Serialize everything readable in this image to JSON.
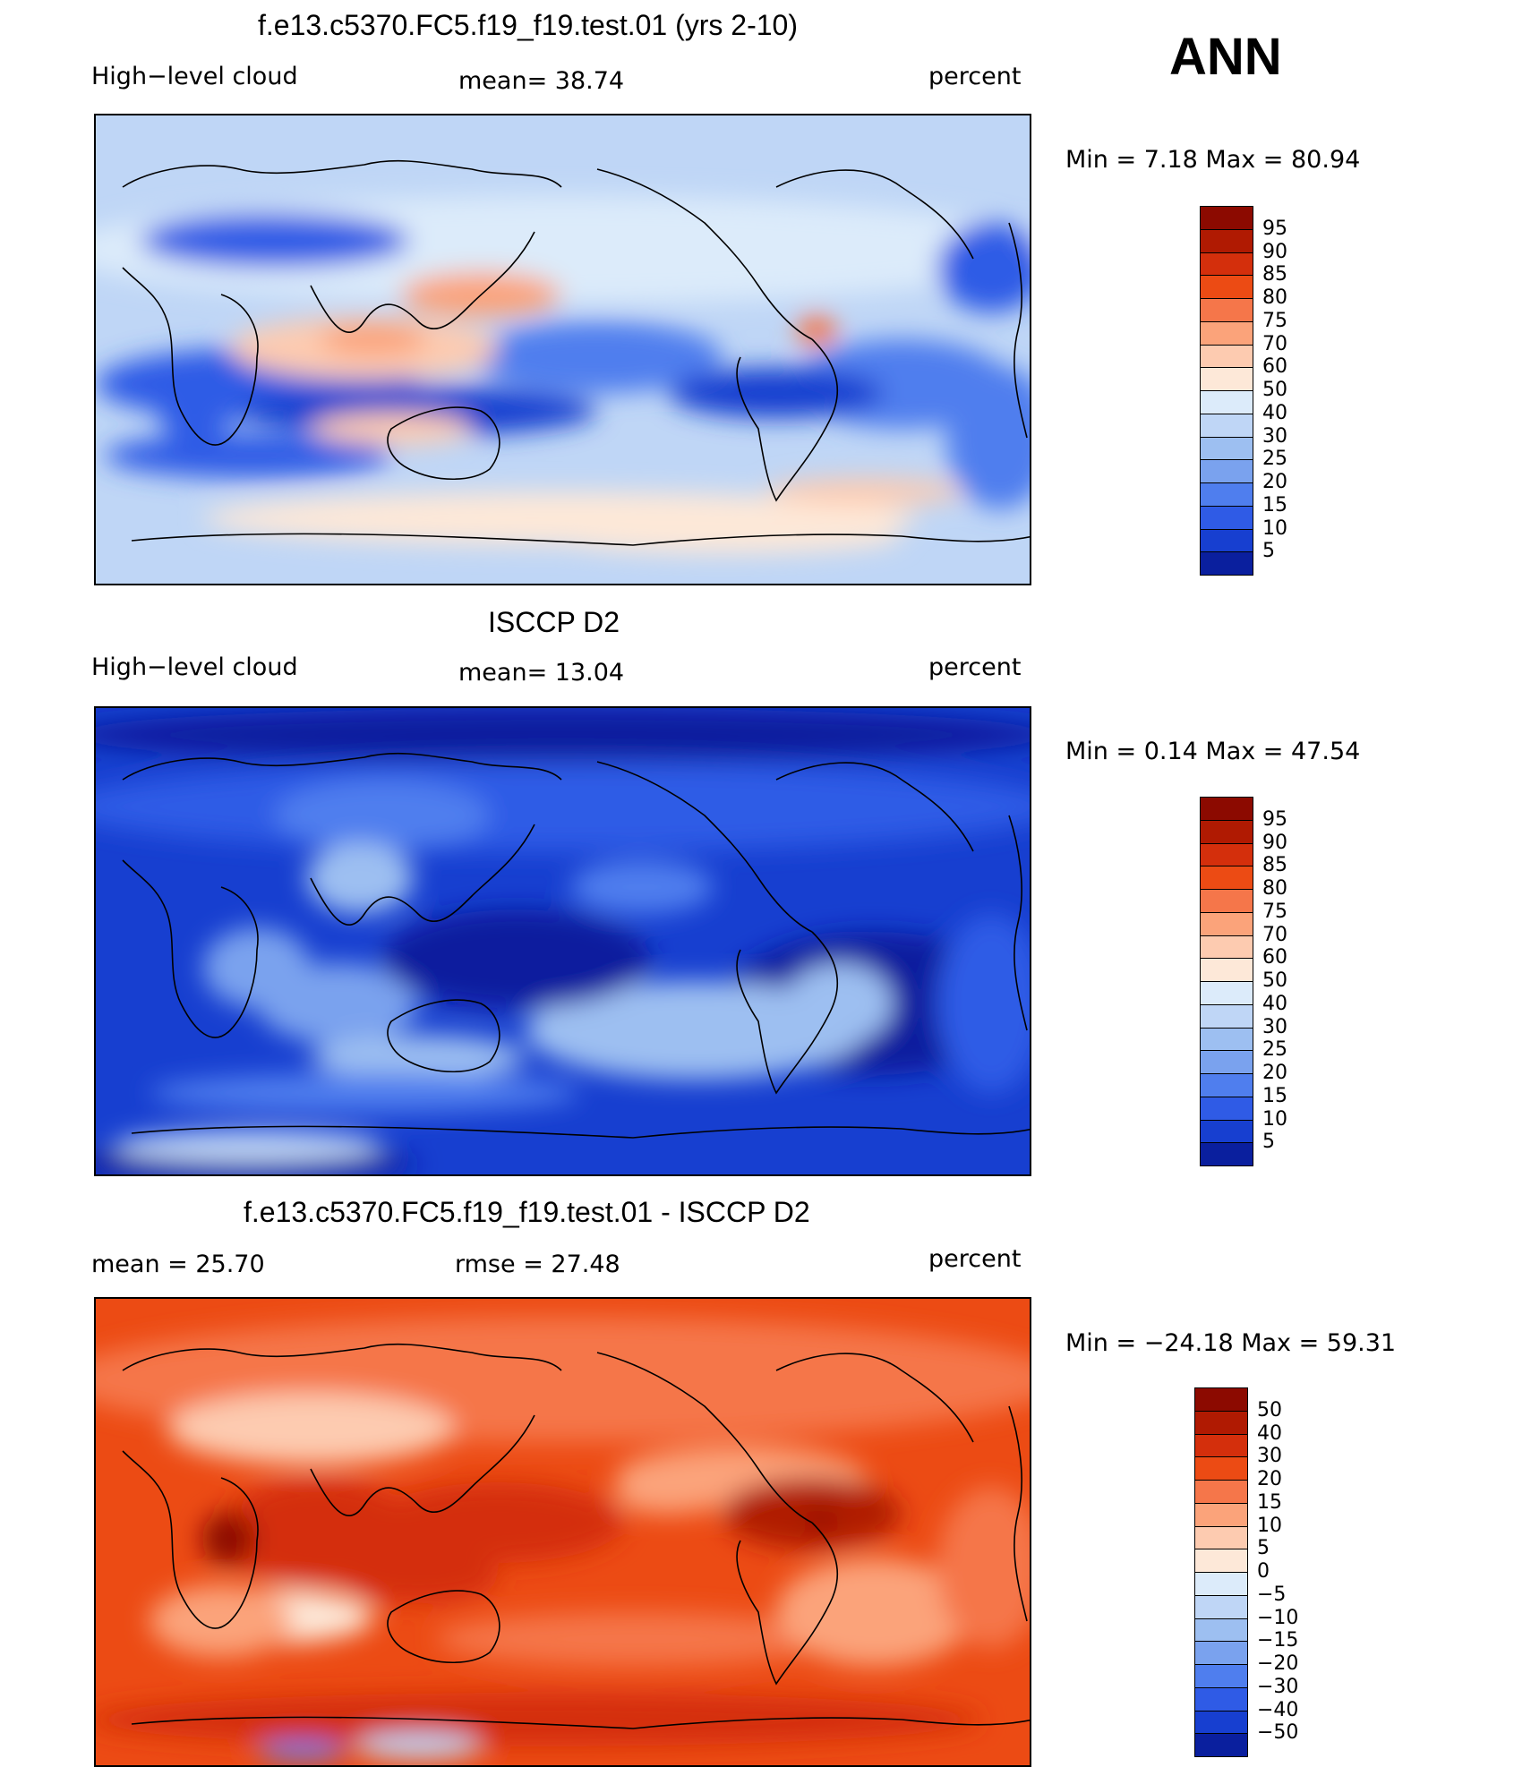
{
  "season": "ANN",
  "panels": [
    {
      "title": "f.e13.c5370.FC5.f19_f19.test.01 (yrs 2-10)",
      "left_label": "High−level cloud",
      "center_label": "mean=   38.74",
      "right_label": "percent",
      "minmax": "Min =    7.18 Max =   80.94",
      "palette": "seq",
      "colorbar_labels": [
        "95",
        "90",
        "85",
        "80",
        "75",
        "70",
        "60",
        "50",
        "40",
        "30",
        "25",
        "20",
        "15",
        "10",
        "5"
      ]
    },
    {
      "title": "ISCCP D2",
      "left_label": "High−level cloud",
      "center_label": "mean=   13.04",
      "right_label": "percent",
      "minmax": "Min =    0.14 Max =   47.54",
      "palette": "seq",
      "colorbar_labels": [
        "95",
        "90",
        "85",
        "80",
        "75",
        "70",
        "60",
        "50",
        "40",
        "30",
        "25",
        "20",
        "15",
        "10",
        "5"
      ]
    },
    {
      "title": "f.e13.c5370.FC5.f19_f19.test.01 - ISCCP D2",
      "left_label": "mean =   25.70",
      "center_label": "rmse =   27.48",
      "right_label": "percent",
      "minmax": "Min = −24.18 Max =   59.31",
      "palette": "diff",
      "colorbar_labels": [
        "50",
        "40",
        "30",
        "20",
        "15",
        "10",
        "5",
        "0",
        "−5",
        "−10",
        "−15",
        "−20",
        "−30",
        "−40",
        "−50"
      ]
    }
  ],
  "colors": {
    "seq": [
      "#8c0a00",
      "#b01a02",
      "#d42f0c",
      "#ec4b14",
      "#f5764a",
      "#fba37a",
      "#fdcbb0",
      "#fde8d8",
      "#dcebfa",
      "#bfd6f6",
      "#9dbff1",
      "#7aa2ee",
      "#4f7eee",
      "#2f5be6",
      "#173fd0",
      "#0a1f9e"
    ],
    "diff": [
      "#8c0a00",
      "#b01a02",
      "#d42f0c",
      "#ec4b14",
      "#f5764a",
      "#fba37a",
      "#fdcbb0",
      "#fde8d8",
      "#dcebfa",
      "#bfd6f6",
      "#9dbff1",
      "#7aa2ee",
      "#4f7eee",
      "#2f5be6",
      "#173fd0",
      "#0a1f9e"
    ]
  },
  "maps": [
    {
      "background": "#bfd6f6",
      "patches": [
        {
          "color": "#dcebfa"
        },
        {
          "color": "#2f5be6"
        },
        {
          "color": "#4f7eee"
        },
        {
          "color": "#2f5be6"
        },
        {
          "color": "#fdcbb0"
        },
        {
          "color": "#fba37a"
        },
        {
          "color": "#fba37a"
        },
        {
          "color": "#2f5be6"
        },
        {
          "color": "#173fd0"
        },
        {
          "color": "#2f5be6"
        },
        {
          "color": "#4f7eee"
        },
        {
          "color": "#fde8d8"
        },
        {
          "color": "#fde8d8"
        },
        {
          "color": "#f5764a"
        },
        {
          "color": "#173fd0"
        },
        {
          "color": "#fdcbb0"
        },
        {
          "color": "#fdcbb0"
        },
        {
          "color": "#4f7eee"
        },
        {
          "color": "#2f5be6"
        }
      ]
    },
    {
      "background": "#173fd0",
      "patches": [
        {
          "color": "#0a1f9e"
        },
        {
          "color": "#2f5be6"
        },
        {
          "color": "#4f7eee"
        },
        {
          "color": "#9dbff1"
        },
        {
          "color": "#7aa2ee"
        },
        {
          "color": "#9dbff1"
        },
        {
          "color": "#0a1f9e"
        },
        {
          "color": "#0a1f9e"
        },
        {
          "color": "#9dbff1"
        },
        {
          "color": "#4f7eee"
        },
        {
          "color": "#7aa2ee"
        },
        {
          "color": "#0a1f9e"
        },
        {
          "color": "#bfd6f6"
        },
        {
          "color": "#9dbff1"
        },
        {
          "color": "#4f7eee"
        },
        {
          "color": "#2f5be6"
        }
      ]
    },
    {
      "background": "#ec4b14",
      "patches": [
        {
          "color": "#f5764a"
        },
        {
          "color": "#fdcbb0"
        },
        {
          "color": "#fba37a"
        },
        {
          "color": "#d42f0c"
        },
        {
          "color": "#8c0a00"
        },
        {
          "color": "#d42f0c"
        },
        {
          "color": "#b01a02"
        },
        {
          "color": "#f5764a"
        },
        {
          "color": "#fba37a"
        },
        {
          "color": "#fde8d8"
        },
        {
          "color": "#d42f0c"
        },
        {
          "color": "#8c0a00"
        },
        {
          "color": "#fba37a"
        },
        {
          "color": "#d42f0c"
        },
        {
          "color": "#bfd6f6"
        },
        {
          "color": "#4f7eee"
        },
        {
          "color": "#fba37a"
        },
        {
          "color": "#f5764a"
        }
      ]
    }
  ]
}
